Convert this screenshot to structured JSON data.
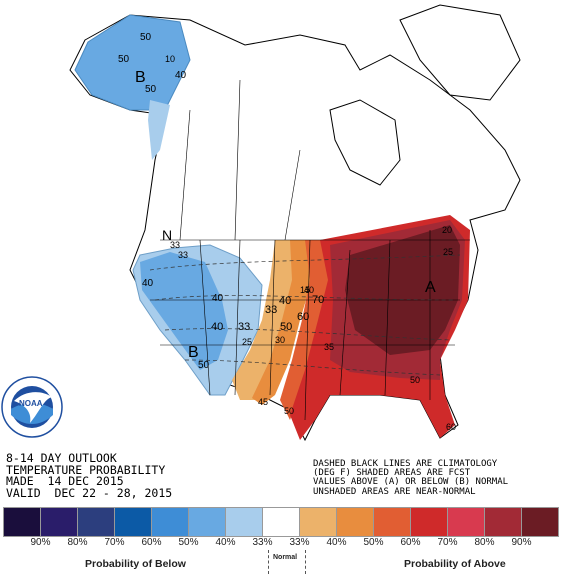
{
  "title_lines": [
    "8-14 DAY OUTLOOK",
    "TEMPERATURE PROBABILITY",
    "MADE  14 DEC 2015",
    "VALID  DEC 22 - 28, 2015"
  ],
  "note_lines": [
    "DASHED BLACK LINES ARE CLIMATOLOGY",
    "(DEG F) SHADED AREAS ARE FCST",
    "VALUES ABOVE (A) OR BELOW (B) NORMAL",
    "UNSHADED AREAS ARE NEAR-NORMAL"
  ],
  "map_labels": {
    "below_a": "B",
    "below_b": "B",
    "above": "A",
    "near_normal": "N",
    "ak_10": "10",
    "ak_40": "40",
    "ak_50a": "50",
    "ak_50b": "50",
    "ak_50c": "50",
    "w_33a": "33",
    "w_33b": "33",
    "w_40a": "40",
    "w_40b": "40",
    "w_40c": "40",
    "w_50": "50",
    "w_33c": "33",
    "c_33": "33",
    "c_40": "40",
    "c_50": "50",
    "c_60": "60",
    "c_70": "70",
    "c_40b": "40",
    "c_45": "45",
    "c_50b": "50",
    "c_50c": "50",
    "c_25": "25",
    "c_30": "30",
    "c_35": "35",
    "c_20": "20",
    "c_25b": "25",
    "c_15": "15",
    "c_60b": "60"
  },
  "legend": {
    "colors": [
      "#1a0e3c",
      "#2a1d6a",
      "#2c3e7e",
      "#0c5aa6",
      "#3e8dd6",
      "#68a9e2",
      "#a8cdec",
      "#ffffff",
      "#ecb26a",
      "#e88d3e",
      "#e15e33",
      "#cf2a2a",
      "#d83a4f",
      "#a22a36",
      "#6b1c24"
    ],
    "percents": [
      "90%",
      "80%",
      "70%",
      "60%",
      "50%",
      "40%",
      "33%",
      "33%",
      "40%",
      "50%",
      "60%",
      "70%",
      "80%",
      "90%"
    ],
    "below_label": "Probability of Below",
    "normal_label": "Normal",
    "above_label": "Probability of Above"
  }
}
